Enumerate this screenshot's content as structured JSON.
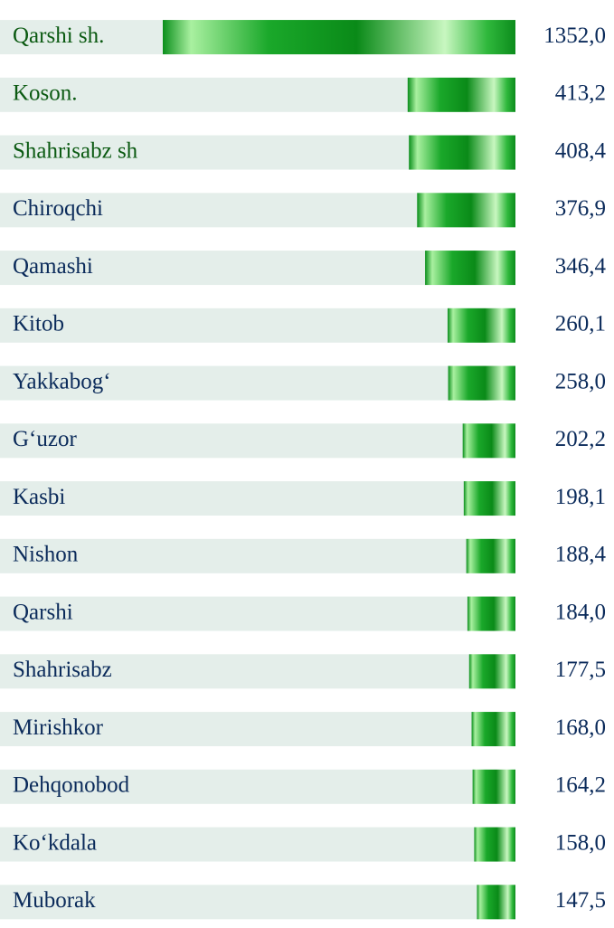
{
  "chart_data": {
    "type": "bar",
    "categories": [
      "Qarshi sh.",
      "Koson.",
      "Shahrisabz sh",
      "Chiroqchi",
      "Qamashi",
      "Kitob",
      "Yakkabog‘",
      "G‘uzor",
      "Kasbi",
      "Nishon",
      "Qarshi",
      "Shahrisabz",
      "Mirishkor",
      "Dehqonobod",
      "Ko‘kdala",
      "Muborak"
    ],
    "values": [
      1352.0,
      413.2,
      408.4,
      376.9,
      346.4,
      260.1,
      258.0,
      202.2,
      198.1,
      188.4,
      184.0,
      177.5,
      168.0,
      164.2,
      158.0,
      147.5
    ],
    "value_labels": [
      "1352,0",
      "413,2",
      "408,4",
      "376,9",
      "346,4",
      "260,1",
      "258,0",
      "202,2",
      "198,1",
      "188,4",
      "184,0",
      "177,5",
      "168,0",
      "164,2",
      "158,0",
      "147,5"
    ],
    "color": "#0a9a1e"
  }
}
